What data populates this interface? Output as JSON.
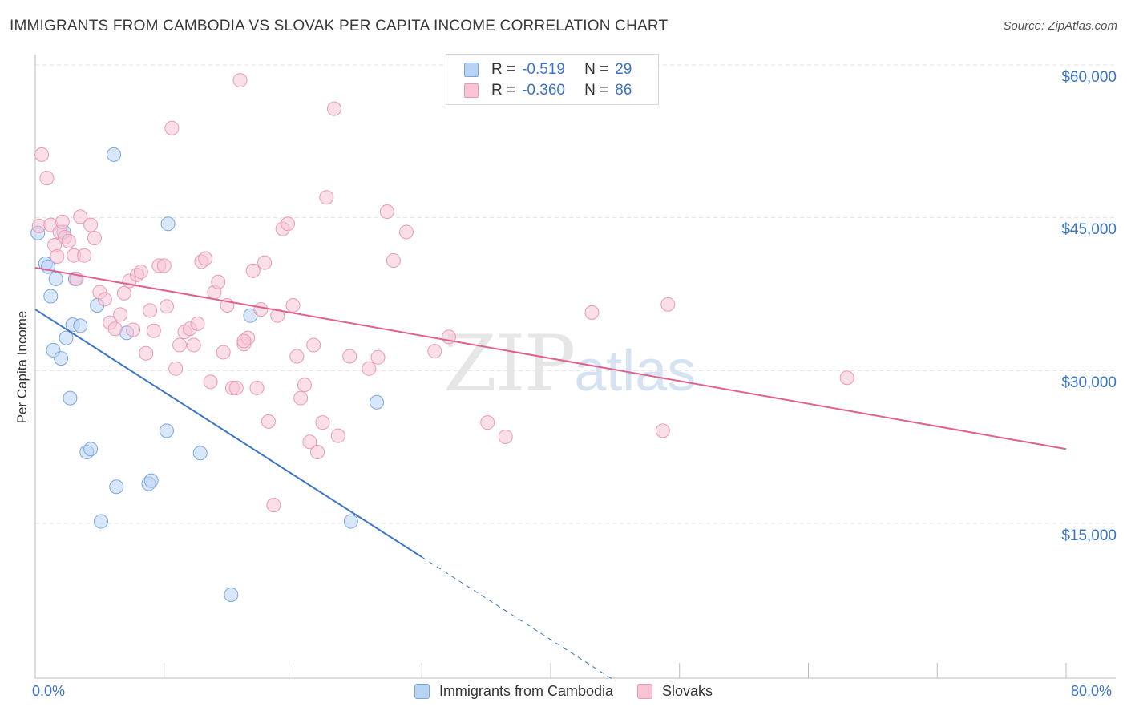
{
  "title": "IMMIGRANTS FROM CAMBODIA VS SLOVAK PER CAPITA INCOME CORRELATION CHART",
  "source": "Source: ZipAtlas.com",
  "watermark": {
    "zip": "ZIP",
    "atlas": "atlas"
  },
  "colors": {
    "blue": "#3b74c9",
    "blue_fill": "#b9d3f5",
    "pink": "#e0608e",
    "pink_fill": "#f8c4d5",
    "grid": "#e3e3e3"
  },
  "legend": {
    "r_label": "R =",
    "n_label": "N =",
    "rows": [
      {
        "r": "-0.519",
        "n": "29"
      },
      {
        "r": "-0.360",
        "n": "86"
      }
    ]
  },
  "chart_data": {
    "type": "scatter",
    "ylabel": "Per Capita Income",
    "xlim": [
      0,
      80
    ],
    "ylim": [
      0,
      62000
    ],
    "x_tick_labels": {
      "min": "0.0%",
      "max": "80.0%"
    },
    "y_ticks": [
      {
        "value": 15000,
        "label": "$15,000"
      },
      {
        "value": 30000,
        "label": "$30,000"
      },
      {
        "value": 45000,
        "label": "$45,000"
      },
      {
        "value": 60000,
        "label": "$60,000"
      }
    ],
    "series": [
      {
        "name": "Immigrants from Cambodia",
        "trend": {
          "x0": 0,
          "y0": 36000,
          "x1": 30,
          "y1": 11700,
          "dash_to_x": 45
        },
        "points": [
          [
            0.2,
            43500
          ],
          [
            0.8,
            40500
          ],
          [
            1.0,
            40200
          ],
          [
            1.2,
            37300
          ],
          [
            1.4,
            32000
          ],
          [
            1.6,
            39000
          ],
          [
            2.0,
            31200
          ],
          [
            2.2,
            43600
          ],
          [
            2.4,
            33200
          ],
          [
            2.7,
            27300
          ],
          [
            2.9,
            34500
          ],
          [
            3.5,
            34400
          ],
          [
            4.0,
            22000
          ],
          [
            4.3,
            22300
          ],
          [
            4.8,
            36400
          ],
          [
            5.1,
            15200
          ],
          [
            6.1,
            51200
          ],
          [
            6.3,
            18600
          ],
          [
            7.1,
            33700
          ],
          [
            8.8,
            18900
          ],
          [
            9.0,
            19200
          ],
          [
            10.2,
            24100
          ],
          [
            10.3,
            44400
          ],
          [
            12.8,
            21900
          ],
          [
            15.2,
            8000
          ],
          [
            16.7,
            35400
          ],
          [
            24.5,
            15200
          ],
          [
            26.5,
            26900
          ],
          [
            3.1,
            39000
          ]
        ]
      },
      {
        "name": "Slovaks",
        "trend": {
          "x0": 0,
          "y0": 40100,
          "x1": 80,
          "y1": 22300
        },
        "points": [
          [
            0.3,
            44200
          ],
          [
            0.5,
            51200
          ],
          [
            0.9,
            48900
          ],
          [
            1.2,
            44300
          ],
          [
            1.5,
            42300
          ],
          [
            1.7,
            41200
          ],
          [
            1.9,
            43600
          ],
          [
            2.1,
            44600
          ],
          [
            2.3,
            43100
          ],
          [
            2.6,
            42700
          ],
          [
            3.0,
            41300
          ],
          [
            3.2,
            39000
          ],
          [
            3.5,
            45100
          ],
          [
            3.8,
            41300
          ],
          [
            4.3,
            44300
          ],
          [
            4.6,
            43000
          ],
          [
            5.0,
            37700
          ],
          [
            5.4,
            37000
          ],
          [
            5.8,
            34700
          ],
          [
            6.2,
            34100
          ],
          [
            6.6,
            35500
          ],
          [
            6.9,
            37600
          ],
          [
            7.3,
            38800
          ],
          [
            7.6,
            34000
          ],
          [
            7.9,
            39400
          ],
          [
            8.2,
            39700
          ],
          [
            8.6,
            31700
          ],
          [
            8.9,
            35900
          ],
          [
            9.2,
            33900
          ],
          [
            9.6,
            40300
          ],
          [
            10.0,
            40300
          ],
          [
            10.2,
            36300
          ],
          [
            10.6,
            53800
          ],
          [
            10.9,
            30200
          ],
          [
            11.2,
            32500
          ],
          [
            11.6,
            33800
          ],
          [
            12.0,
            34100
          ],
          [
            12.3,
            32500
          ],
          [
            12.6,
            34600
          ],
          [
            12.9,
            40700
          ],
          [
            13.2,
            41000
          ],
          [
            13.6,
            28900
          ],
          [
            13.9,
            37700
          ],
          [
            14.2,
            38700
          ],
          [
            14.6,
            31800
          ],
          [
            14.9,
            36400
          ],
          [
            15.3,
            28300
          ],
          [
            15.6,
            28300
          ],
          [
            15.9,
            58500
          ],
          [
            16.2,
            32600
          ],
          [
            16.5,
            33200
          ],
          [
            16.9,
            39800
          ],
          [
            17.2,
            28300
          ],
          [
            17.5,
            36000
          ],
          [
            17.8,
            40600
          ],
          [
            18.1,
            25000
          ],
          [
            18.5,
            16800
          ],
          [
            18.8,
            35400
          ],
          [
            19.2,
            43900
          ],
          [
            19.6,
            44400
          ],
          [
            20.0,
            36400
          ],
          [
            20.3,
            31400
          ],
          [
            20.6,
            27300
          ],
          [
            20.9,
            28600
          ],
          [
            21.3,
            23000
          ],
          [
            21.6,
            32500
          ],
          [
            21.9,
            22000
          ],
          [
            22.3,
            24900
          ],
          [
            22.6,
            47000
          ],
          [
            23.2,
            55700
          ],
          [
            23.5,
            23600
          ],
          [
            24.4,
            31400
          ],
          [
            25.9,
            30200
          ],
          [
            26.6,
            31300
          ],
          [
            27.3,
            45600
          ],
          [
            27.8,
            40800
          ],
          [
            28.8,
            43600
          ],
          [
            31.0,
            31900
          ],
          [
            32.1,
            33300
          ],
          [
            35.1,
            24900
          ],
          [
            36.5,
            23500
          ],
          [
            43.2,
            35700
          ],
          [
            48.7,
            24100
          ],
          [
            49.1,
            36500
          ],
          [
            63.0,
            29300
          ],
          [
            16.2,
            32900
          ]
        ]
      }
    ]
  }
}
